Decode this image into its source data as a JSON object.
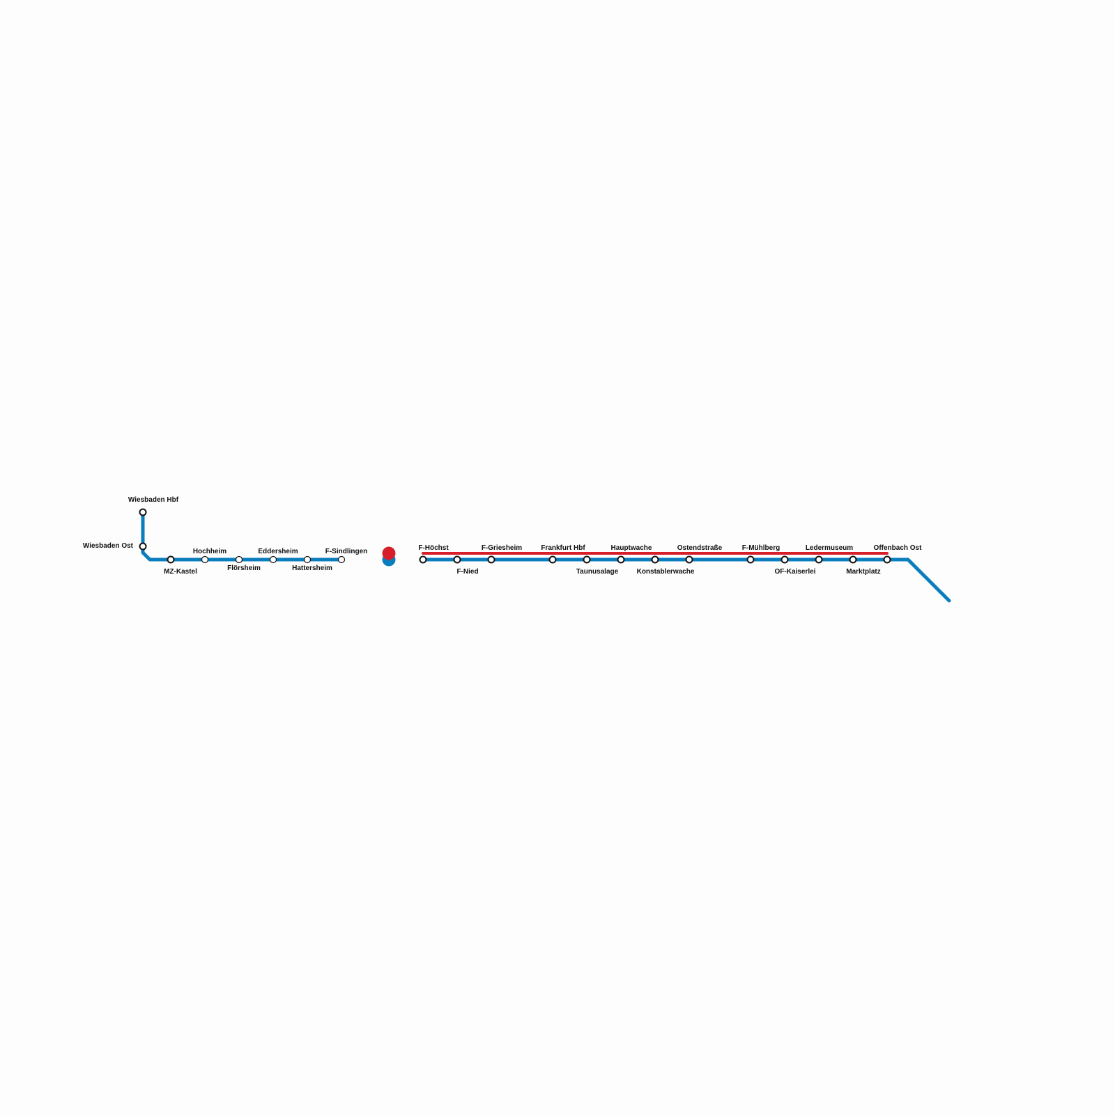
{
  "colors": {
    "line_blue": "#0a7dbd",
    "line_red": "#d71f2a",
    "background": "#fdfdfd"
  },
  "stations": [
    {
      "name": "Wiesbaden Hbf"
    },
    {
      "name": "Wiesbaden Ost"
    },
    {
      "name": "MZ-Kastel"
    },
    {
      "name": "Hochheim"
    },
    {
      "name": "Flörsheim"
    },
    {
      "name": "Eddersheim"
    },
    {
      "name": "Hattersheim"
    },
    {
      "name": "F-Sindlingen"
    },
    {
      "name": "F-Höchst"
    },
    {
      "name": "F-Nied"
    },
    {
      "name": "F-Griesheim"
    },
    {
      "name": "Frankfurt Hbf"
    },
    {
      "name": "Taunusalage"
    },
    {
      "name": "Hauptwache"
    },
    {
      "name": "Konstablerwache"
    },
    {
      "name": "Ostendstraße"
    },
    {
      "name": "F-Mühlberg"
    },
    {
      "name": "OF-Kaiserlei"
    },
    {
      "name": "Ledermuseum"
    },
    {
      "name": "Marktplatz"
    },
    {
      "name": "Offenbach Ost"
    }
  ]
}
